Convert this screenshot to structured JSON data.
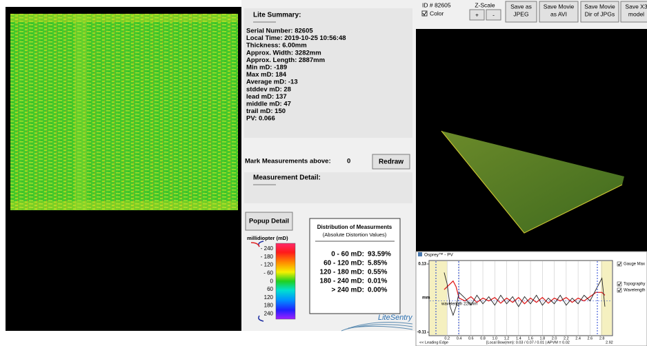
{
  "summary": {
    "title": "Lite Summary:",
    "lines": [
      "Serial Number: 82605",
      "Local Time: 2019-10-25 10:56:48",
      "Thickness: 6.00mm",
      "Approx. Width: 3282mm",
      "Approx. Length: 2887mm",
      "Min mD: -189",
      "Max mD: 184",
      "Average mD: -13",
      "stddev mD: 28",
      "lead mD: 137",
      "middle mD: 47",
      "trail mD: 150",
      "PV: 0.066"
    ]
  },
  "mark": {
    "label": "Mark Measurements above:",
    "value": "0",
    "button": "Redraw"
  },
  "detail": {
    "title": "Measurement Detail:"
  },
  "popup_button": "Popup Detail",
  "legend": {
    "title": "millidiopter (mD)",
    "labels": [
      "- 240",
      "- 180",
      "- 120",
      "- 60",
      "0",
      "60",
      "120",
      "180",
      "240"
    ]
  },
  "distribution": {
    "title": "Distribution of Measurments",
    "subtitle": "(Absolute Distortion Values)",
    "rows": [
      {
        "range": "0 - 60 mD:",
        "value": "93.59%"
      },
      {
        "range": "60 - 120 mD:",
        "value": "5.85%"
      },
      {
        "range": "120 - 180 mD:",
        "value": "0.55%"
      },
      {
        "range": "180 - 240 mD:",
        "value": "0.01%"
      },
      {
        "range": "> 240 mD:",
        "value": "0.00%"
      }
    ]
  },
  "logo": "LiteSentry",
  "toolbar": {
    "id": "ID # 82605",
    "color": "Color",
    "zscale": "Z-Scale",
    "plus": "+",
    "minus": "-",
    "buttons": [
      [
        "Save as",
        "JPEG"
      ],
      [
        "Save Movie",
        "as AVI"
      ],
      [
        "Save Movie",
        "Dir of JPGs"
      ],
      [
        "Save X3",
        "model"
      ]
    ]
  },
  "chart_data": {
    "type": "line",
    "title": "Osprey™ - PV",
    "ylabel": "mm",
    "x": [
      0.15,
      0.2,
      0.25,
      0.3,
      0.35,
      0.4,
      0.5,
      0.6,
      0.7,
      0.8,
      0.9,
      1.0,
      1.1,
      1.2,
      1.3,
      1.4,
      1.5,
      1.6,
      1.7,
      1.8,
      1.9,
      2.0,
      2.1,
      2.2,
      2.3,
      2.4,
      2.5,
      2.6,
      2.7,
      2.8,
      2.85
    ],
    "series": [
      {
        "name": "Topography",
        "color": "#e02020",
        "values": [
          0.04,
          0.05,
          0.06,
          0.07,
          0.05,
          0.01,
          0.0,
          0.015,
          -0.005,
          0.01,
          0.0,
          0.012,
          -0.008,
          0.01,
          -0.005,
          0.012,
          -0.01,
          0.01,
          -0.005,
          0.012,
          -0.008,
          0.01,
          0.0,
          0.012,
          -0.005,
          0.01,
          0.0,
          0.015,
          0.03,
          0.03,
          0.02
        ]
      },
      {
        "name": "Wavelength",
        "color": "#222222",
        "values": [
          0.1,
          0.06,
          -0.02,
          -0.05,
          -0.02,
          0.03,
          0.01,
          -0.015,
          0.02,
          -0.01,
          0.015,
          -0.015,
          0.02,
          -0.01,
          0.015,
          -0.02,
          0.015,
          -0.01,
          0.02,
          -0.015,
          0.01,
          -0.01,
          0.02,
          -0.015,
          0.01,
          -0.01,
          0.02,
          0.0,
          0.04,
          0.08,
          -0.02
        ]
      }
    ],
    "xlim": [
      0,
      2.92
    ],
    "ylim": [
      -0.11,
      0.13
    ],
    "xticks": [
      0.2,
      0.4,
      0.6,
      0.8,
      {
        "value": 1,
        "label": "1.0"
      },
      1.2,
      1.4,
      1.6,
      1.8,
      {
        "value": 2,
        "label": "2.0"
      },
      2.2,
      2.4,
      2.6,
      2.8
    ],
    "yticks": [
      -0.11,
      0.13
    ],
    "options": [
      "Gauge Max",
      "Topography",
      "Wavelength"
    ],
    "wavelength_label": "wavelength 226mm",
    "footer_left": "<< Leading Edge",
    "footer": "[Local Bow(mm): 0.03 / 0.07 / 0.01 | APVM = 0.02",
    "footer_right": "2.92",
    "grid": true
  }
}
